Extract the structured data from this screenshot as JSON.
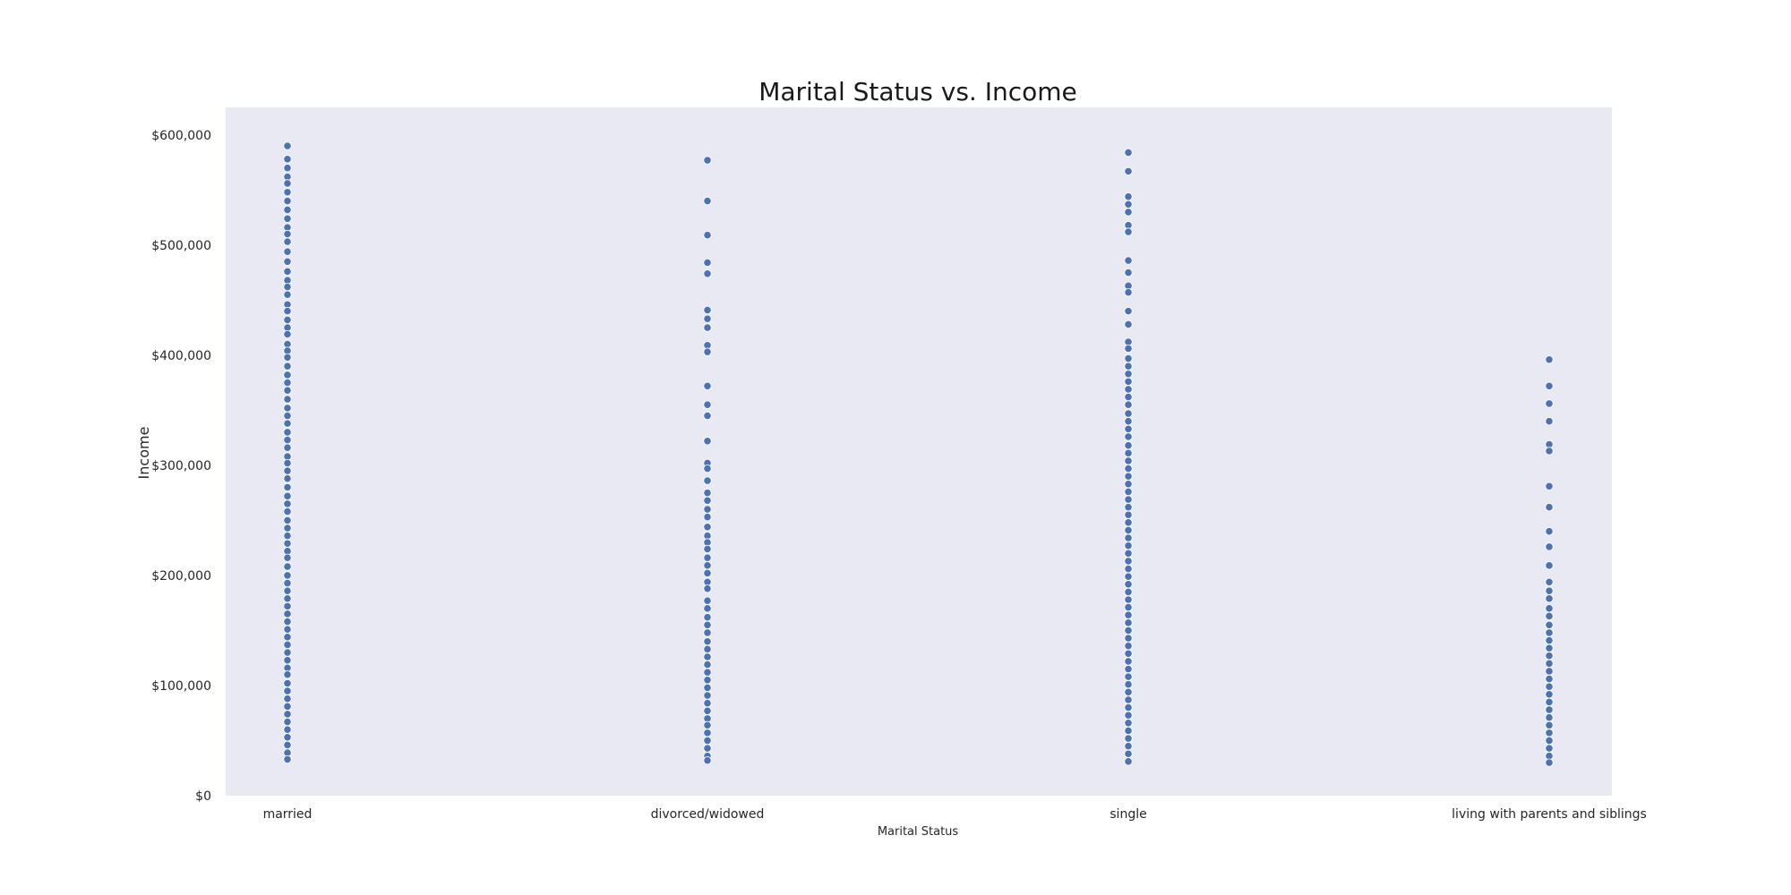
{
  "colors": {
    "plot_background": "#e8e9f2",
    "point_fill": "#4c72b0",
    "point_stroke": "#ffffff"
  },
  "chart_data": {
    "type": "scatter",
    "title": "Marital Status vs. Income",
    "xlabel": "Marital Status",
    "ylabel": "Income",
    "categories": [
      "married",
      "divorced/widowed",
      "single",
      "living with parents and siblings"
    ],
    "ylim": [
      0,
      625000
    ],
    "yticks": [
      0,
      100000,
      200000,
      300000,
      400000,
      500000,
      600000
    ],
    "ytick_labels": [
      "$0",
      "$100,000",
      "$200,000",
      "$300,000",
      "$400,000",
      "$500,000",
      "$600,000"
    ],
    "grid": false,
    "legend": "none",
    "series": [
      {
        "category": "married",
        "values": [
          590000,
          578000,
          570000,
          562000,
          556000,
          548000,
          540000,
          532000,
          524000,
          516000,
          510000,
          503000,
          494000,
          485000,
          476000,
          468000,
          462000,
          455000,
          446000,
          440000,
          432000,
          425000,
          419000,
          410000,
          404000,
          398000,
          390000,
          382000,
          375000,
          368000,
          360000,
          352000,
          345000,
          338000,
          330000,
          323000,
          316000,
          308000,
          302000,
          295000,
          288000,
          280000,
          272000,
          265000,
          258000,
          250000,
          243000,
          236000,
          229000,
          222000,
          216000,
          208000,
          200000,
          193000,
          186000,
          179000,
          172000,
          165000,
          158000,
          151000,
          144000,
          137000,
          130000,
          123000,
          116000,
          110000,
          102000,
          95000,
          88000,
          81000,
          74000,
          67000,
          60000,
          53000,
          46000,
          39000,
          33000
        ]
      },
      {
        "category": "divorced/widowed",
        "values": [
          577000,
          540000,
          509000,
          484000,
          474000,
          441000,
          433000,
          425000,
          409000,
          403000,
          372000,
          355000,
          345000,
          322000,
          302000,
          297000,
          286000,
          275000,
          268000,
          260000,
          253000,
          244000,
          236000,
          230000,
          224000,
          216000,
          209000,
          202000,
          194000,
          188000,
          177000,
          170000,
          162000,
          155000,
          148000,
          140000,
          133000,
          126000,
          119000,
          112000,
          105000,
          98000,
          91000,
          84000,
          77000,
          70000,
          64000,
          57000,
          50000,
          43000,
          36000,
          32000
        ]
      },
      {
        "category": "single",
        "values": [
          584000,
          567000,
          544000,
          537000,
          530000,
          518000,
          512000,
          486000,
          475000,
          463000,
          457000,
          440000,
          428000,
          412000,
          406000,
          397000,
          390000,
          383000,
          376000,
          369000,
          362000,
          355000,
          347000,
          340000,
          333000,
          326000,
          318000,
          311000,
          304000,
          297000,
          290000,
          283000,
          276000,
          269000,
          262000,
          255000,
          248000,
          241000,
          234000,
          227000,
          220000,
          213000,
          206000,
          199000,
          192000,
          185000,
          178000,
          171000,
          164000,
          157000,
          150000,
          143000,
          136000,
          129000,
          122000,
          115000,
          108000,
          101000,
          94000,
          87000,
          80000,
          73000,
          66000,
          59000,
          52000,
          45000,
          38000,
          31000
        ]
      },
      {
        "category": "living with parents and siblings",
        "values": [
          396000,
          372000,
          356000,
          340000,
          319000,
          313000,
          281000,
          262000,
          240000,
          226000,
          209000,
          194000,
          186000,
          179000,
          170000,
          163000,
          155000,
          148000,
          141000,
          134000,
          127000,
          120000,
          113000,
          106000,
          99000,
          92000,
          85000,
          78000,
          71000,
          64000,
          57000,
          50000,
          43000,
          36000,
          30000
        ]
      }
    ]
  }
}
